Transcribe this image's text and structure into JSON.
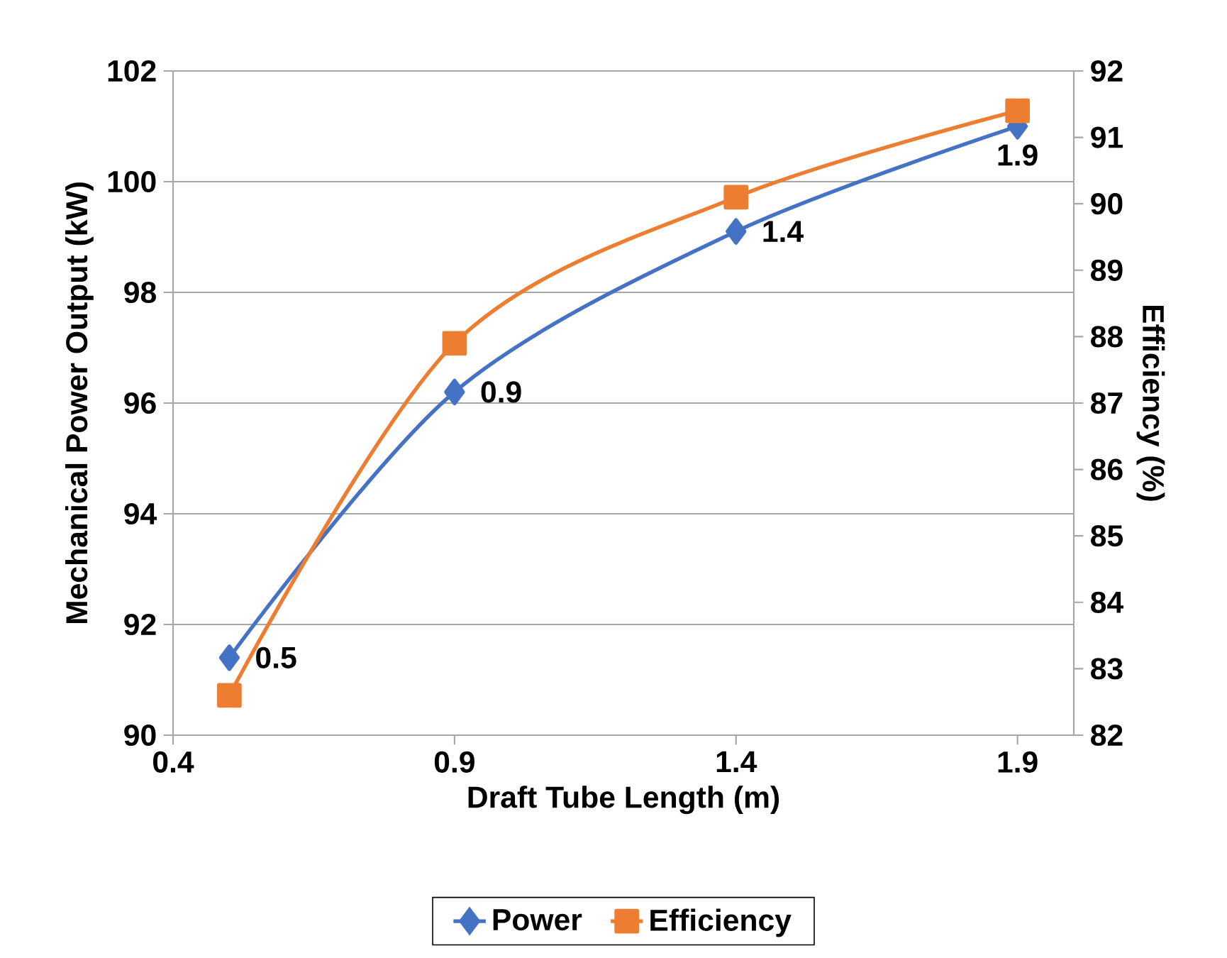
{
  "chart_data": {
    "type": "line",
    "xlabel": "Draft Tube Length (m)",
    "ylabel": "Mechanical Power Output (kW)",
    "y2label": "Efficiency (%)",
    "x": [
      0.5,
      0.9,
      1.4,
      1.9
    ],
    "series": [
      {
        "name": "Power",
        "color": "#4472c4",
        "marker": "diamond",
        "values": [
          91.4,
          96.2,
          99.1,
          101.0
        ]
      },
      {
        "name": "Efficiency",
        "color": "#ed7d31",
        "marker": "square",
        "axis": "y2",
        "values": [
          82.6,
          87.9,
          90.1,
          91.4
        ]
      }
    ],
    "xlim": [
      0.4,
      2.0
    ],
    "xticks": [
      0.4,
      0.9,
      1.4,
      1.9
    ],
    "ylim": [
      90,
      102
    ],
    "yticks": [
      90,
      92,
      94,
      96,
      98,
      100,
      102
    ],
    "y2lim": [
      82,
      92
    ],
    "y2ticks": [
      82,
      83,
      84,
      85,
      86,
      87,
      88,
      89,
      90,
      91,
      92
    ],
    "annotations": [
      {
        "text": "0.5",
        "x": 0.5,
        "y": 91.4
      },
      {
        "text": "0.9",
        "x": 0.9,
        "y": 96.2
      },
      {
        "text": "1.4",
        "x": 1.4,
        "y": 99.1
      },
      {
        "text": "1.9",
        "x": 1.9,
        "y": 101.0
      }
    ],
    "grid": "y",
    "legend": "bottom",
    "line_style": "solid"
  }
}
